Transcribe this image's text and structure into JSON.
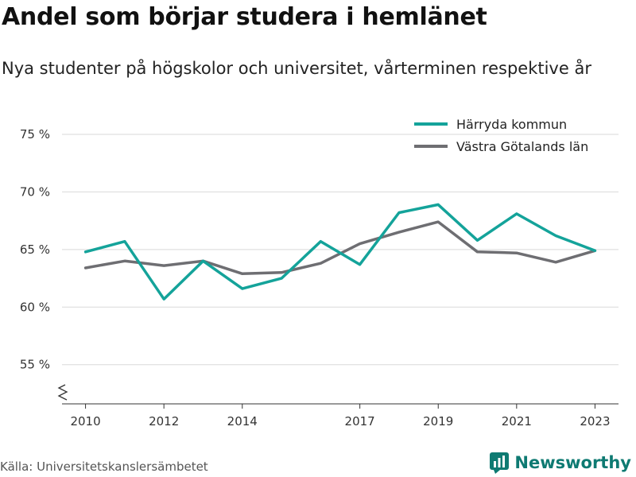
{
  "title": "Andel som börjar studera i hemlänet",
  "subtitle": "Nya studenter på högskolor och universitet, vårterminen respektive år",
  "source": "Källa: Universitetskanslersämbetet",
  "brand": {
    "name": "Newsworthy",
    "icon": "newsworthy-logo-icon",
    "color": "#0e7a72"
  },
  "chart_data": {
    "type": "line",
    "x": [
      2010,
      2011,
      2012,
      2013,
      2014,
      2015,
      2016,
      2017,
      2018,
      2019,
      2020,
      2021,
      2022,
      2023
    ],
    "x_tick_values": [
      2010,
      2012,
      2014,
      2017,
      2019,
      2021,
      2023
    ],
    "x_tick_labels": [
      "2010",
      "2012",
      "2014",
      "2017",
      "2019",
      "2021",
      "2023"
    ],
    "y_tick_values": [
      55,
      60,
      65,
      70,
      75
    ],
    "y_tick_labels": [
      "55 %",
      "60 %",
      "65 %",
      "70 %",
      "75 %"
    ],
    "xlim": [
      2009.4,
      2023.6
    ],
    "ylim": [
      51.6,
      77
    ],
    "y_axis_break": true,
    "grid": "horizontal",
    "legend_position": "top-right",
    "series": [
      {
        "name": "Härryda kommun",
        "color": "#14a39a",
        "values": [
          64.8,
          65.7,
          60.7,
          64.0,
          61.6,
          62.5,
          65.7,
          63.7,
          68.2,
          68.9,
          65.8,
          68.1,
          66.2,
          64.9
        ]
      },
      {
        "name": "Västra Götalands län",
        "color": "#6e6e72",
        "values": [
          63.4,
          64.0,
          63.6,
          64.0,
          62.9,
          63.0,
          63.8,
          65.5,
          66.5,
          67.4,
          64.8,
          64.7,
          63.9,
          64.9
        ]
      }
    ]
  }
}
